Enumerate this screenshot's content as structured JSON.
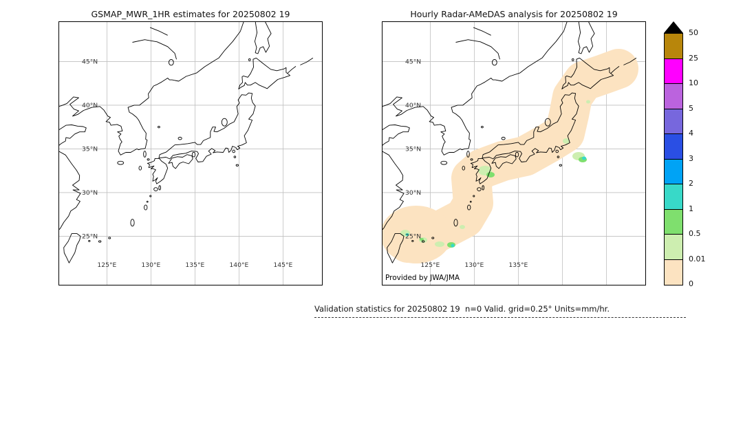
{
  "figure": {
    "left_panel": {
      "title": "GSMAP_MWR_1HR estimates for 20250802 19"
    },
    "right_panel": {
      "title": "Hourly Radar-AMeDAS analysis for 20250802 19",
      "credit": "Provided by JWA/JMA"
    },
    "axes": {
      "lat_labels": [
        "45°N",
        "40°N",
        "35°N",
        "30°N",
        "25°N"
      ],
      "lon_labels_left": [
        "125°E",
        "130°E",
        "135°E",
        "140°E",
        "145°E"
      ],
      "lon_labels_right": [
        "125°E",
        "130°E",
        "135°E"
      ]
    },
    "colorbar": {
      "labels": [
        "50",
        "25",
        "10",
        "5",
        "4",
        "3",
        "2",
        "1",
        "0.5",
        "0.01",
        "0"
      ],
      "colors_top_to_bottom": [
        "#b8860b",
        "#ff00ff",
        "#bb63de",
        "#7767dd",
        "#2a4fe4",
        "#00a3f5",
        "#38d9c8",
        "#7fdf6e",
        "#cdeeb0",
        "#fce3c1"
      ],
      "overflow_color": "#000000"
    },
    "caption": "Validation statistics for 20250802 19  n=0 Valid. grid=0.25° Units=mm/hr."
  }
}
